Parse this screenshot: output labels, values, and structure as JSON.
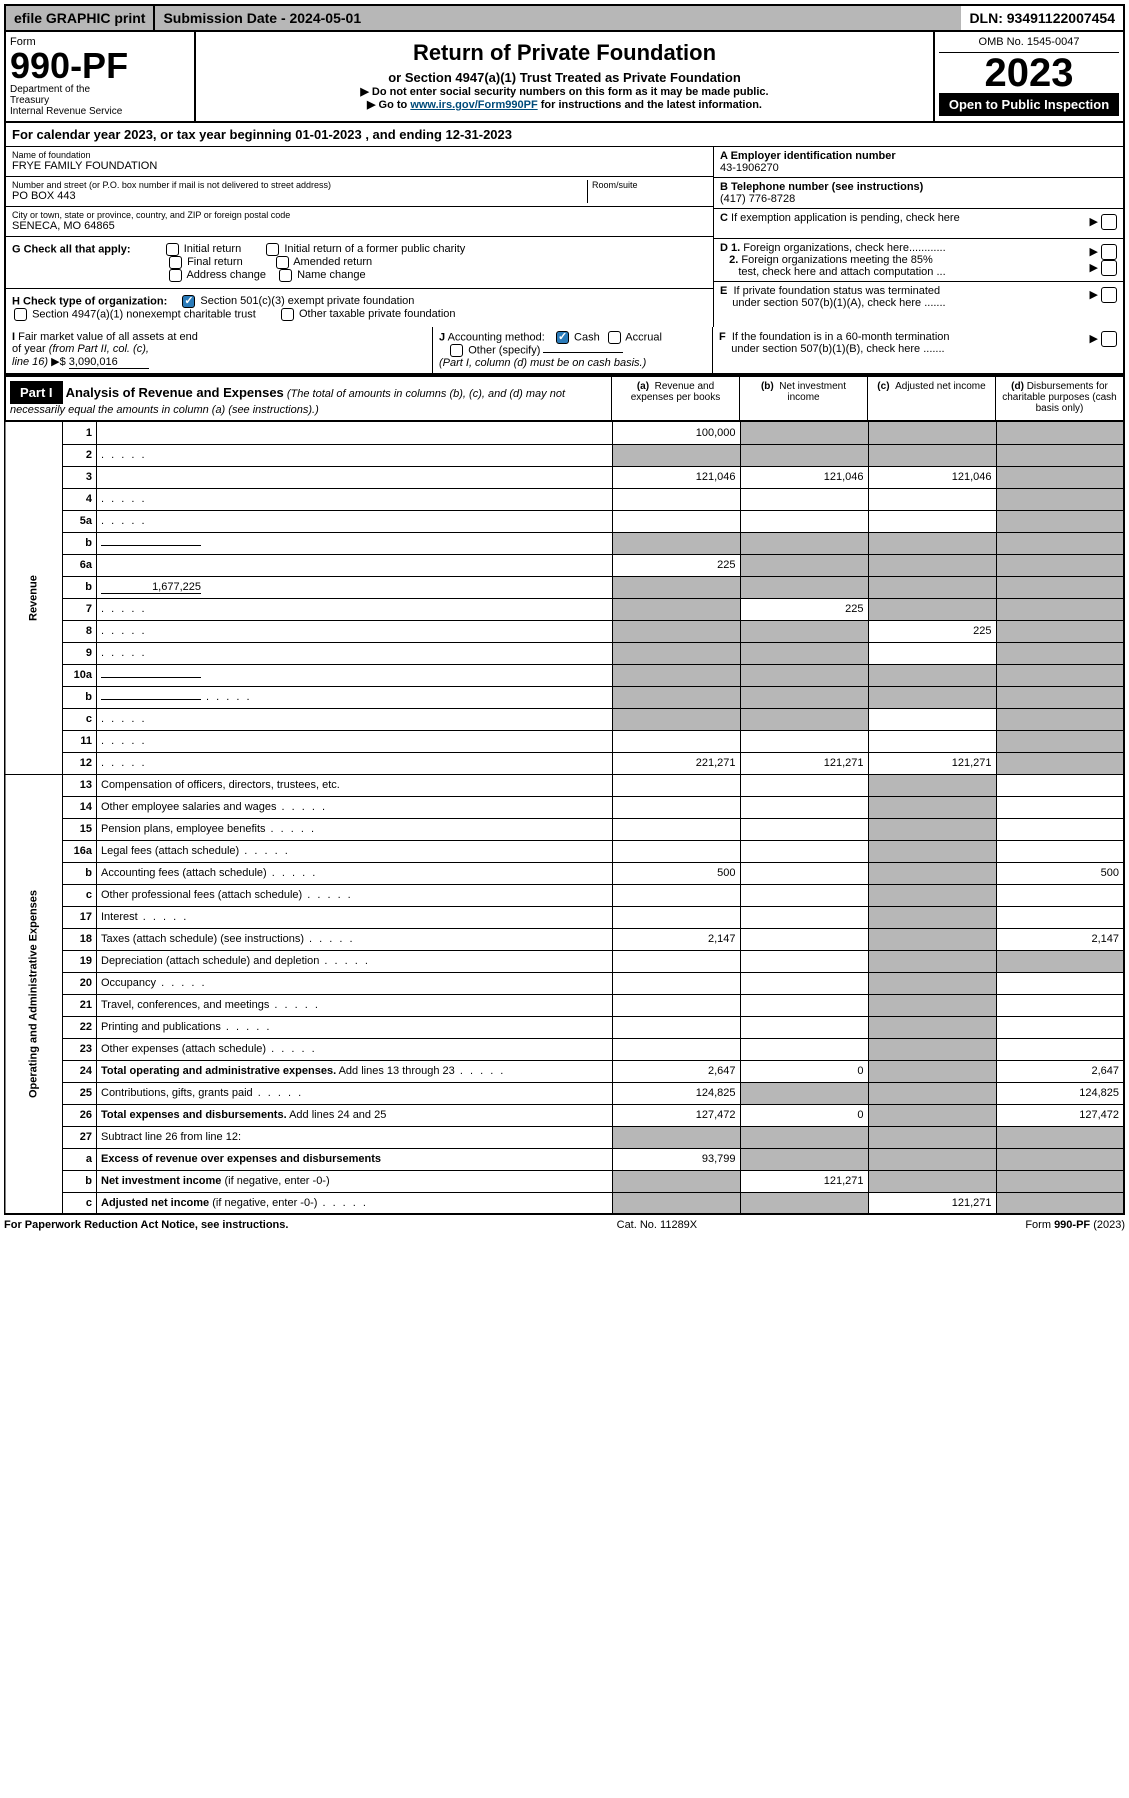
{
  "topbar": {
    "efile": "efile GRAPHIC print",
    "submission": "Submission Date - 2024-05-01",
    "dln": "DLN: 93491122007454"
  },
  "header": {
    "form_label": "Form",
    "form_number": "990-PF",
    "dept": "Department of the Treasury\nInternal Revenue Service",
    "title": "Return of Private Foundation",
    "subtitle": "or Section 4947(a)(1) Trust Treated as Private Foundation",
    "note1": "▶ Do not enter social security numbers on this form as it may be made public.",
    "note2_pre": "▶ Go to ",
    "note2_link": "www.irs.gov/Form990PF",
    "note2_post": " for instructions and the latest information.",
    "omb": "OMB No. 1545-0047",
    "year": "2023",
    "open": "Open to Public Inspection"
  },
  "calendar": "For calendar year 2023, or tax year beginning 01-01-2023             , and ending 12-31-2023",
  "entity": {
    "name_label": "Name of foundation",
    "name": "FRYE FAMILY FOUNDATION",
    "addr_label": "Number and street (or P.O. box number if mail is not delivered to street address)",
    "addr": "PO BOX 443",
    "room_label": "Room/suite",
    "city_label": "City or town, state or province, country, and ZIP or foreign postal code",
    "city": "SENECA, MO  64865",
    "a_label": "A Employer identification number",
    "a_val": "43-1906270",
    "b_label": "B Telephone number (see instructions)",
    "b_val": "(417) 776-8728",
    "c_label": "C If exemption application is pending, check here",
    "d1_label": "D 1. Foreign organizations, check here............",
    "d2_label": "2. Foreign organizations meeting the 85% test, check here and attach computation ...",
    "e_label": "E  If private foundation status was terminated under section 507(b)(1)(A), check here .......",
    "f_label": "F  If the foundation is in a 60-month termination under section 507(b)(1)(B), check here ......."
  },
  "g": {
    "label": "G Check all that apply:",
    "items": [
      "Initial return",
      "Initial return of a former public charity",
      "Final return",
      "Amended return",
      "Address change",
      "Name change"
    ]
  },
  "h": {
    "label": "H Check type of organization:",
    "opt1": "Section 501(c)(3) exempt private foundation",
    "opt2": "Section 4947(a)(1) nonexempt charitable trust",
    "opt3": "Other taxable private foundation"
  },
  "i": {
    "label": "I Fair market value of all assets at end of year (from Part II, col. (c), line 16) ▶$",
    "val": "3,090,016"
  },
  "j": {
    "label": "J Accounting method:",
    "opts": [
      "Cash",
      "Accrual",
      "Other (specify)"
    ],
    "note": "(Part I, column (d) must be on cash basis.)"
  },
  "part1": {
    "label": "Part I",
    "title": "Analysis of Revenue and Expenses",
    "title_note": "(The total of amounts in columns (b), (c), and (d) may not necessarily equal the amounts in column (a) (see instructions).)",
    "col_a": "(a)   Revenue and expenses per books",
    "col_b": "(b)   Net investment income",
    "col_c": "(c)   Adjusted net income",
    "col_d": "(d)  Disbursements for charitable purposes (cash basis only)"
  },
  "side_labels": {
    "revenue": "Revenue",
    "expenses": "Operating and Administrative Expenses"
  },
  "rows": [
    {
      "n": "1",
      "d": "",
      "a": "100,000",
      "b": "",
      "c": "",
      "dgrey": true,
      "bgrey": true,
      "cgrey": true
    },
    {
      "n": "2",
      "d": "",
      "dots": true,
      "a": "",
      "b": "",
      "c": "",
      "bgrey": true,
      "cgrey": true,
      "dgrey": true,
      "agrey": true
    },
    {
      "n": "3",
      "d": "",
      "a": "121,046",
      "b": "121,046",
      "c": "121,046",
      "dgrey": true
    },
    {
      "n": "4",
      "d": "",
      "dots": true,
      "a": "",
      "b": "",
      "c": "",
      "dgrey": true
    },
    {
      "n": "5a",
      "d": "",
      "dots": true,
      "a": "",
      "b": "",
      "c": "",
      "dgrey": true
    },
    {
      "n": "b",
      "d": "",
      "inline": true,
      "a": "",
      "b": "",
      "c": "",
      "bgrey": true,
      "cgrey": true,
      "dgrey": true,
      "agrey": true
    },
    {
      "n": "6a",
      "d": "",
      "a": "225",
      "b": "",
      "c": "",
      "bgrey": true,
      "cgrey": true,
      "dgrey": true
    },
    {
      "n": "b",
      "d": "",
      "inline": true,
      "inlineval": "1,677,225",
      "a": "",
      "b": "",
      "c": "",
      "agrey": true,
      "bgrey": true,
      "cgrey": true,
      "dgrey": true
    },
    {
      "n": "7",
      "d": "",
      "dots": true,
      "a": "",
      "b": "225",
      "c": "",
      "agrey": true,
      "cgrey": true,
      "dgrey": true
    },
    {
      "n": "8",
      "d": "",
      "dots": true,
      "a": "",
      "b": "",
      "c": "225",
      "agrey": true,
      "bgrey": true,
      "dgrey": true
    },
    {
      "n": "9",
      "d": "",
      "dots": true,
      "a": "",
      "b": "",
      "c": "",
      "agrey": true,
      "bgrey": true,
      "dgrey": true
    },
    {
      "n": "10a",
      "d": "",
      "inline": true,
      "a": "",
      "b": "",
      "c": "",
      "agrey": true,
      "bgrey": true,
      "cgrey": true,
      "dgrey": true
    },
    {
      "n": "b",
      "d": "",
      "dots": true,
      "inline": true,
      "a": "",
      "b": "",
      "c": "",
      "agrey": true,
      "bgrey": true,
      "cgrey": true,
      "dgrey": true
    },
    {
      "n": "c",
      "d": "",
      "dots": true,
      "a": "",
      "b": "",
      "c": "",
      "agrey": true,
      "bgrey": true,
      "dgrey": true
    },
    {
      "n": "11",
      "d": "",
      "dots": true,
      "a": "",
      "b": "",
      "c": "",
      "dgrey": true
    },
    {
      "n": "12",
      "d": "",
      "dots": true,
      "a": "221,271",
      "b": "121,271",
      "c": "121,271",
      "dgrey": true
    }
  ],
  "exp_rows": [
    {
      "n": "13",
      "d": "Compensation of officers, directors, trustees, etc.",
      "a": "",
      "b": "",
      "c": "",
      "dval": ""
    },
    {
      "n": "14",
      "d": "Other employee salaries and wages",
      "dots": true,
      "a": "",
      "b": "",
      "c": "",
      "dval": ""
    },
    {
      "n": "15",
      "d": "Pension plans, employee benefits",
      "dots": true,
      "a": "",
      "b": "",
      "c": "",
      "dval": ""
    },
    {
      "n": "16a",
      "d": "Legal fees (attach schedule)",
      "dots": true,
      "a": "",
      "b": "",
      "c": "",
      "dval": ""
    },
    {
      "n": "b",
      "d": "Accounting fees (attach schedule)",
      "dots": true,
      "a": "500",
      "b": "",
      "c": "",
      "dval": "500"
    },
    {
      "n": "c",
      "d": "Other professional fees (attach schedule)",
      "dots": true,
      "a": "",
      "b": "",
      "c": "",
      "dval": ""
    },
    {
      "n": "17",
      "d": "Interest",
      "dots": true,
      "a": "",
      "b": "",
      "c": "",
      "dval": ""
    },
    {
      "n": "18",
      "d": "Taxes (attach schedule) (see instructions)",
      "dots": true,
      "a": "2,147",
      "b": "",
      "c": "",
      "dval": "2,147"
    },
    {
      "n": "19",
      "d": "Depreciation (attach schedule) and depletion",
      "dots": true,
      "a": "",
      "b": "",
      "c": "",
      "dval": "",
      "dgrey": true
    },
    {
      "n": "20",
      "d": "Occupancy",
      "dots": true,
      "a": "",
      "b": "",
      "c": "",
      "dval": ""
    },
    {
      "n": "21",
      "d": "Travel, conferences, and meetings",
      "dots": true,
      "a": "",
      "b": "",
      "c": "",
      "dval": ""
    },
    {
      "n": "22",
      "d": "Printing and publications",
      "dots": true,
      "a": "",
      "b": "",
      "c": "",
      "dval": ""
    },
    {
      "n": "23",
      "d": "Other expenses (attach schedule)",
      "dots": true,
      "a": "",
      "b": "",
      "c": "",
      "dval": ""
    },
    {
      "n": "24",
      "d": "<b>Total operating and administrative expenses.</b> Add lines 13 through 23",
      "dots": true,
      "a": "2,647",
      "b": "0",
      "c": "",
      "dval": "2,647"
    },
    {
      "n": "25",
      "d": "Contributions, gifts, grants paid",
      "dots": true,
      "a": "124,825",
      "b": "",
      "c": "",
      "dval": "124,825",
      "bgrey": true,
      "cgrey": true
    },
    {
      "n": "26",
      "d": "<b>Total expenses and disbursements.</b> Add lines 24 and 25",
      "a": "127,472",
      "b": "0",
      "c": "",
      "dval": "127,472"
    }
  ],
  "bottom_rows": [
    {
      "n": "27",
      "d": "Subtract line 26 from line 12:",
      "a": "",
      "b": "",
      "c": "",
      "dval": "",
      "agrey": true,
      "bgrey": true,
      "cgrey": true,
      "dgrey": true
    },
    {
      "n": "a",
      "d": "<b>Excess of revenue over expenses and disbursements</b>",
      "a": "93,799",
      "b": "",
      "c": "",
      "dval": "",
      "bgrey": true,
      "cgrey": true,
      "dgrey": true
    },
    {
      "n": "b",
      "d": "<b>Net investment income</b> (if negative, enter -0-)",
      "a": "",
      "b": "121,271",
      "c": "",
      "dval": "",
      "agrey": true,
      "cgrey": true,
      "dgrey": true
    },
    {
      "n": "c",
      "d": "<b>Adjusted net income</b> (if negative, enter -0-)",
      "dots": true,
      "a": "",
      "b": "",
      "c": "121,271",
      "dval": "",
      "agrey": true,
      "bgrey": true,
      "dgrey": true
    }
  ],
  "footer": {
    "left": "For Paperwork Reduction Act Notice, see instructions.",
    "mid": "Cat. No. 11289X",
    "right": "Form 990-PF (2023)"
  }
}
